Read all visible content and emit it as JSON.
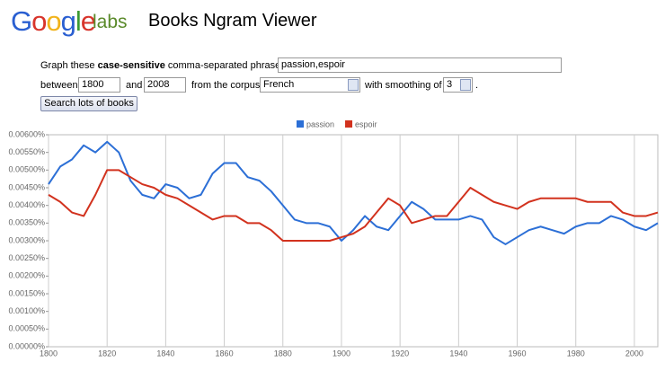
{
  "header": {
    "logo": "Google",
    "logo_suffix": "labs",
    "title": "Books Ngram Viewer"
  },
  "form": {
    "graph_prefix": "Graph these",
    "graph_bold": "case-sensitive",
    "graph_suffix": "comma-separated phrases:",
    "phrases": "passion,espoir",
    "between": "between",
    "start_year": "1800",
    "and": "and",
    "end_year": "2008",
    "corpus_label": "from the corpus",
    "corpus": "French",
    "smoothing_label": "with smoothing of",
    "smoothing": "3",
    "period": ".",
    "button": "Search lots of books"
  },
  "chart_data": {
    "type": "line",
    "x": [
      1800,
      1804,
      1808,
      1812,
      1816,
      1820,
      1824,
      1828,
      1832,
      1836,
      1840,
      1844,
      1848,
      1852,
      1856,
      1860,
      1864,
      1868,
      1872,
      1876,
      1880,
      1884,
      1888,
      1892,
      1896,
      1900,
      1904,
      1908,
      1912,
      1916,
      1920,
      1924,
      1928,
      1932,
      1936,
      1940,
      1944,
      1948,
      1952,
      1956,
      1960,
      1964,
      1968,
      1972,
      1976,
      1980,
      1984,
      1988,
      1992,
      1996,
      2000,
      2004,
      2008
    ],
    "series": [
      {
        "name": "passion",
        "color": "#2c6fd6",
        "values": [
          0.0046,
          0.0051,
          0.0053,
          0.0057,
          0.0055,
          0.0058,
          0.0055,
          0.0047,
          0.0043,
          0.0042,
          0.0046,
          0.0045,
          0.0042,
          0.0043,
          0.0049,
          0.0052,
          0.0052,
          0.0048,
          0.0047,
          0.0044,
          0.004,
          0.0036,
          0.0035,
          0.0035,
          0.0034,
          0.003,
          0.0033,
          0.0037,
          0.0034,
          0.0033,
          0.0037,
          0.0041,
          0.0039,
          0.0036,
          0.0036,
          0.0036,
          0.0037,
          0.0036,
          0.0031,
          0.0029,
          0.0031,
          0.0033,
          0.0034,
          0.0033,
          0.0032,
          0.0034,
          0.0035,
          0.0035,
          0.0037,
          0.0036,
          0.0034,
          0.0033,
          0.0035
        ]
      },
      {
        "name": "espoir",
        "color": "#d2321e",
        "values": [
          0.0043,
          0.0041,
          0.0038,
          0.0037,
          0.0043,
          0.005,
          0.005,
          0.0048,
          0.0046,
          0.0045,
          0.0043,
          0.0042,
          0.004,
          0.0038,
          0.0036,
          0.0037,
          0.0037,
          0.0035,
          0.0035,
          0.0033,
          0.003,
          0.003,
          0.003,
          0.003,
          0.003,
          0.0031,
          0.0032,
          0.0034,
          0.0038,
          0.0042,
          0.004,
          0.0035,
          0.0036,
          0.0037,
          0.0037,
          0.0041,
          0.0045,
          0.0043,
          0.0041,
          0.004,
          0.0039,
          0.0041,
          0.0042,
          0.0042,
          0.0042,
          0.0042,
          0.0041,
          0.0041,
          0.0041,
          0.0038,
          0.0037,
          0.0037,
          0.0038
        ]
      }
    ],
    "xlim": [
      1800,
      2008
    ],
    "xticks": [
      1800,
      1820,
      1840,
      1860,
      1880,
      1900,
      1920,
      1940,
      1960,
      1980,
      2000
    ],
    "ylim": [
      0,
      0.006
    ],
    "yticks": [
      {
        "value": 0,
        "label": "0.00000%"
      },
      {
        "value": 0.0005,
        "label": "0.00050%"
      },
      {
        "value": 0.001,
        "label": "0.00100%"
      },
      {
        "value": 0.0015,
        "label": "0.00150%"
      },
      {
        "value": 0.002,
        "label": "0.00200%"
      },
      {
        "value": 0.0025,
        "label": "0.00250%"
      },
      {
        "value": 0.003,
        "label": "0.00300%"
      },
      {
        "value": 0.0035,
        "label": "0.00350%"
      },
      {
        "value": 0.004,
        "label": "0.00400%"
      },
      {
        "value": 0.0045,
        "label": "0.00450%"
      },
      {
        "value": 0.005,
        "label": "0.00500%"
      },
      {
        "value": 0.0055,
        "label": "0.00550%"
      },
      {
        "value": 0.006,
        "label": "0.00600%"
      }
    ],
    "grid": "x",
    "legend": "top"
  }
}
